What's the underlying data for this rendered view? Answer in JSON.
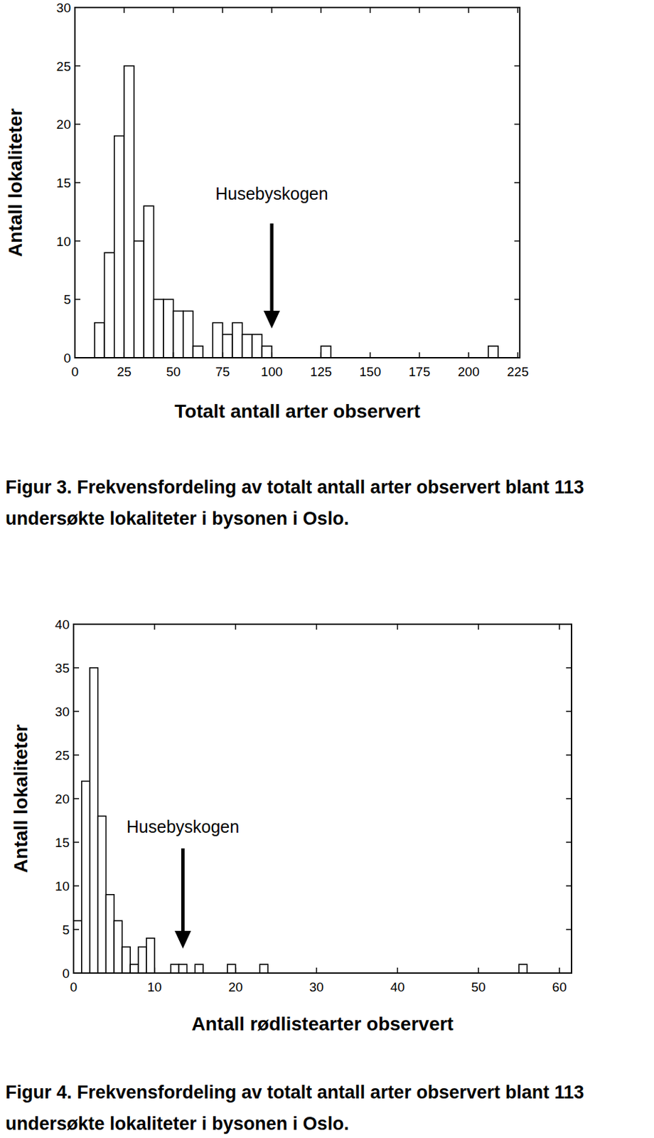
{
  "chart_data": [
    {
      "type": "histogram",
      "title": "Figur 3. Frekvensfordeling av totalt antall arter observert blant 113 undersøkte lokaliteter i bysonen i Oslo.",
      "x_label": "Totalt antall arter observert",
      "y_label": "Antall lokaliteter",
      "color": "#ffffff",
      "bins": [
        10,
        15,
        20,
        25,
        30,
        35,
        40,
        45,
        50,
        55,
        60,
        65,
        70,
        75,
        80,
        85,
        90,
        95,
        100,
        105,
        110,
        115,
        120,
        125,
        130,
        135,
        140,
        145,
        150,
        155,
        160,
        165,
        170,
        175,
        180,
        185,
        190,
        195,
        200,
        205,
        210,
        215
      ],
      "counts": [
        3,
        9,
        19,
        25,
        10,
        13,
        5,
        5,
        4,
        4,
        1,
        0,
        3,
        2,
        3,
        2,
        2,
        1,
        0,
        0,
        0,
        0,
        0,
        1,
        0,
        0,
        0,
        0,
        0,
        0,
        0,
        0,
        0,
        0,
        0,
        0,
        0,
        0,
        0,
        0,
        1
      ],
      "xlim": [
        0,
        226
      ],
      "ylim": [
        0,
        30
      ],
      "xticks": [
        0,
        25,
        50,
        75,
        100,
        125,
        150,
        175,
        200,
        225
      ],
      "yticks": [
        0,
        5,
        10,
        15,
        20,
        25,
        30
      ],
      "annotations": [
        {
          "text": "Husebyskogen",
          "x": 100
        }
      ]
    },
    {
      "type": "histogram",
      "title": "Figur 4. Frekvensfordeling av totalt antall arter observert blant 113 undersøkte lokaliteter i bysonen i Oslo.",
      "x_label": "Antall rødlistearter observert",
      "y_label": "Antall lokaliteter",
      "color": "#ffffff",
      "bins": [
        0,
        1,
        2,
        3,
        4,
        5,
        6,
        7,
        8,
        9,
        10,
        11,
        12,
        13,
        14,
        15,
        16,
        17,
        18,
        19,
        20,
        21,
        22,
        23,
        24,
        25,
        26,
        27,
        28,
        29,
        30,
        31,
        32,
        33,
        34,
        35,
        36,
        37,
        38,
        39,
        40,
        41,
        42,
        43,
        44,
        45,
        46,
        47,
        48,
        49,
        50,
        51,
        52,
        53,
        54,
        55,
        56
      ],
      "counts": [
        6,
        22,
        35,
        18,
        9,
        6,
        3,
        1,
        3,
        4,
        0,
        0,
        1,
        1,
        0,
        1,
        0,
        0,
        0,
        1,
        0,
        0,
        0,
        1,
        0,
        0,
        0,
        0,
        0,
        0,
        0,
        0,
        0,
        0,
        0,
        0,
        0,
        0,
        0,
        0,
        0,
        0,
        0,
        0,
        0,
        0,
        0,
        0,
        0,
        0,
        0,
        0,
        0,
        0,
        0,
        1
      ],
      "xlim": [
        0,
        61.5
      ],
      "ylim": [
        0,
        40
      ],
      "xticks": [
        0,
        10,
        20,
        30,
        40,
        50,
        60
      ],
      "yticks": [
        0,
        5,
        10,
        15,
        20,
        25,
        30,
        35,
        40
      ],
      "annotations": [
        {
          "text": "Husebyskogen",
          "x": 13.5
        }
      ]
    }
  ]
}
